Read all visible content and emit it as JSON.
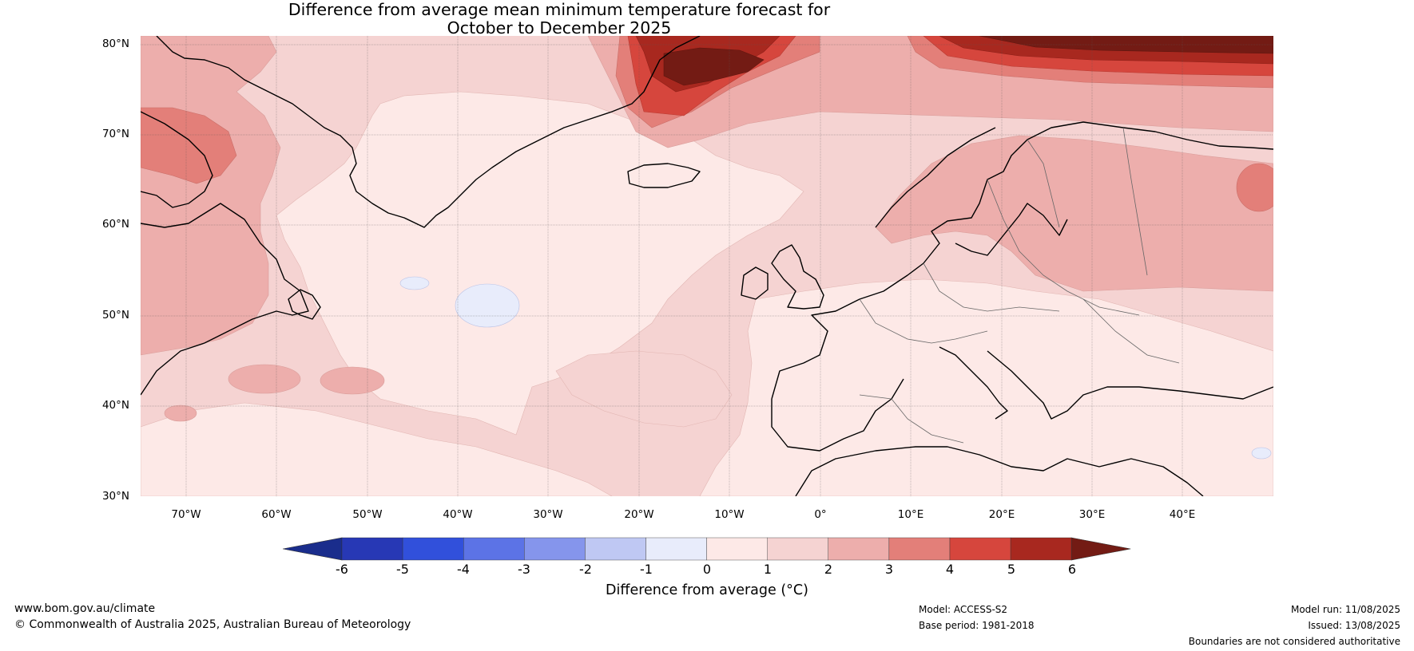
{
  "title_line1": "Difference from average mean minimum temperature forecast for",
  "title_line2": "October to December 2025",
  "map": {
    "latitude_labels": [
      "80°N",
      "70°N",
      "60°N",
      "50°N",
      "40°N",
      "30°N"
    ],
    "longitude_labels": [
      "70°W",
      "60°W",
      "50°W",
      "40°W",
      "30°W",
      "20°W",
      "10°W",
      "0°",
      "10°E",
      "20°E",
      "30°E",
      "40°E"
    ],
    "extent": {
      "lon": [
        -75,
        50
      ],
      "lat": [
        30,
        81
      ]
    }
  },
  "colorbar": {
    "label": "Difference from average (°C)",
    "ticks": [
      "-6",
      "-5",
      "-4",
      "-3",
      "-2",
      "-1",
      "0",
      "1",
      "2",
      "3",
      "4",
      "5",
      "6"
    ],
    "colors": [
      "#1a2d8c",
      "#2738b5",
      "#3150db",
      "#5c73e6",
      "#8595ec",
      "#bfc8f3",
      "#e8ecfb",
      "#fde9e7",
      "#f5d3d2",
      "#edaeac",
      "#e37f79",
      "#d6463d",
      "#a8281f",
      "#731b14"
    ]
  },
  "footer": {
    "website": "www.bom.gov.au/climate",
    "copyright": "© Commonwealth of Australia 2025, Australian Bureau of Meteorology",
    "model": "Model: ACCESS-S2",
    "base_period": "Base period: 1981-2018",
    "model_run": "Model run: 11/08/2025",
    "issued": "Issued: 13/08/2025",
    "disclaimer": "Boundaries are not considered authoritative"
  }
}
